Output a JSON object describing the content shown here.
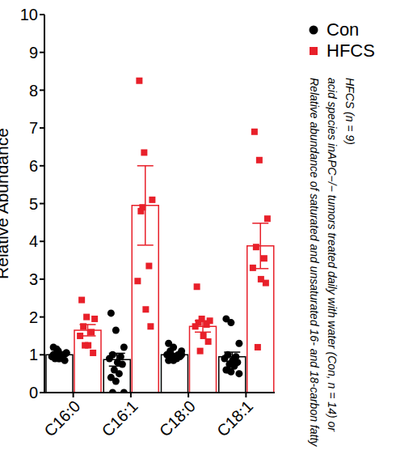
{
  "chart_data": {
    "type": "bar",
    "ylabel": "Relative Abundance",
    "caption": "Relative abundance of saturated and unsaturated 16- and 18-carbon fatty acid species inAPC−/− tumors treated daily with water (Con, n = 14) or HFCS (n = 9)",
    "categories": [
      "C16:0",
      "C16:1",
      "C18:0",
      "C18:1"
    ],
    "ylim": [
      0,
      10
    ],
    "yticks": [
      0,
      1,
      2,
      3,
      4,
      5,
      6,
      7,
      8,
      9,
      10
    ],
    "grid": false,
    "legend": "right",
    "series": [
      {
        "name": "Con",
        "color": "#000000",
        "marker": "circle",
        "values": [
          1.0,
          0.87,
          1.0,
          0.95
        ],
        "error": [
          0.04,
          0.17,
          0.04,
          0.12
        ],
        "points": [
          [
            1.2,
            1.1,
            1.05,
            1.0,
            1.0,
            0.95,
            0.9,
            0.85,
            1.15,
            0.95,
            1.0,
            0.9,
            1.05,
            0.9
          ],
          [
            2.1,
            1.65,
            1.2,
            1.0,
            0.95,
            0.9,
            0.8,
            0.75,
            0.6,
            0.5,
            0.4,
            0.3,
            0.0,
            0.0
          ],
          [
            1.3,
            1.2,
            1.1,
            1.05,
            1.0,
            1.0,
            0.95,
            0.95,
            0.9,
            0.9,
            0.85,
            0.85,
            1.0,
            1.1
          ],
          [
            1.95,
            1.85,
            1.3,
            1.0,
            0.95,
            0.9,
            0.85,
            0.8,
            0.75,
            0.7,
            0.6,
            0.55,
            0.5,
            0.6
          ]
        ]
      },
      {
        "name": "HFCS",
        "color": "#e8202a",
        "marker": "square",
        "values": [
          1.65,
          4.95,
          1.75,
          3.88
        ],
        "error": [
          0.15,
          1.05,
          0.15,
          0.6
        ],
        "points": [
          [
            2.45,
            2.0,
            1.95,
            1.75,
            1.6,
            1.5,
            1.25,
            1.05,
            1.25
          ],
          [
            8.25,
            6.35,
            5.1,
            4.8,
            3.35,
            2.95,
            2.2,
            1.75,
            4.9
          ],
          [
            2.8,
            1.95,
            1.9,
            1.85,
            1.8,
            1.75,
            1.5,
            1.35,
            1.1
          ],
          [
            6.9,
            6.15,
            4.6,
            3.85,
            3.55,
            3.3,
            3.0,
            2.9,
            1.2
          ]
        ]
      }
    ]
  }
}
